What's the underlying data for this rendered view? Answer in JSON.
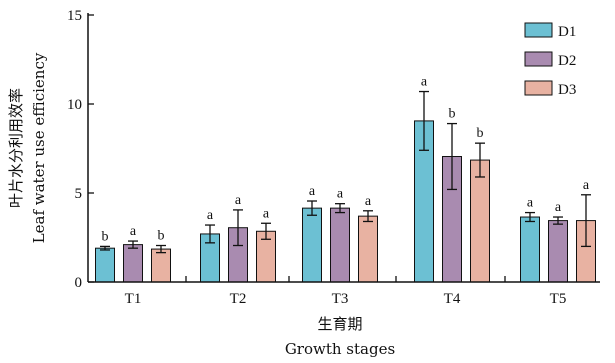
{
  "chart_data": {
    "type": "bar",
    "categories": [
      "T1",
      "T2",
      "T3",
      "T4",
      "T5"
    ],
    "series": [
      {
        "name": "D1",
        "color": "#6cc0d3",
        "values": [
          1.9,
          2.7,
          4.15,
          9.05,
          3.65
        ],
        "errors": [
          0.1,
          0.5,
          0.4,
          1.65,
          0.25
        ],
        "labels": [
          "b",
          "a",
          "a",
          "a",
          "a"
        ]
      },
      {
        "name": "D2",
        "color": "#a98bb0",
        "values": [
          2.1,
          3.05,
          4.15,
          7.05,
          3.45
        ],
        "errors": [
          0.2,
          1.0,
          0.25,
          1.85,
          0.2
        ],
        "labels": [
          "a",
          "a",
          "a",
          "b",
          "a"
        ]
      },
      {
        "name": "D3",
        "color": "#e8b2a2",
        "values": [
          1.85,
          2.85,
          3.7,
          6.85,
          3.45
        ],
        "errors": [
          0.2,
          0.45,
          0.3,
          0.95,
          1.45
        ],
        "labels": [
          "b",
          "a",
          "a",
          "b",
          "a"
        ]
      }
    ],
    "ylim": [
      0,
      15
    ],
    "yticks": [
      0,
      5,
      10,
      15
    ],
    "ylabel_cn": "叶片水分利用效率",
    "ylabel_en": "Leaf water use efficiency",
    "xlabel_cn": "生育期",
    "xlabel_en": "Growth stages",
    "legend_position": "top-right",
    "grid": false
  }
}
